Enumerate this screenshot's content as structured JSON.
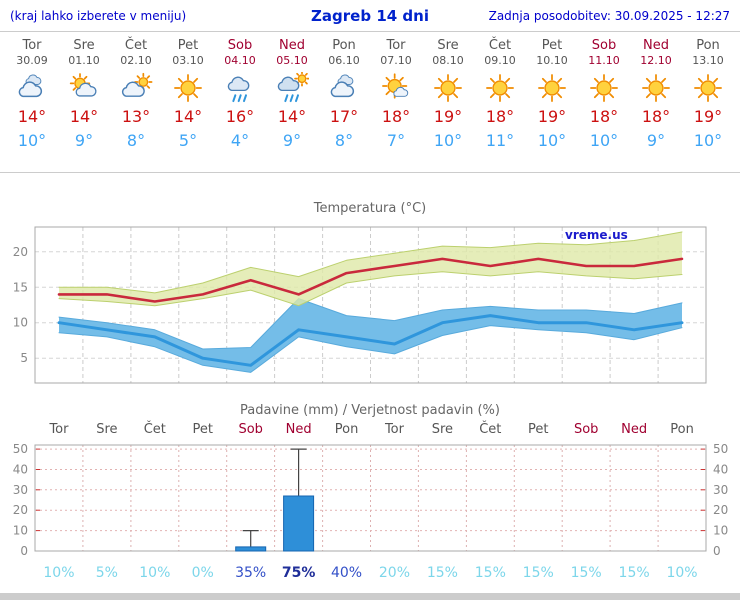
{
  "header": {
    "hint": "(kraj lahko izberete v meniju)",
    "title": "Zagreb 14 dni",
    "updated": "Zadnja posodobitev: 30.09.2025 - 12:27"
  },
  "colors": {
    "header_blue": "#0000cc",
    "weekend_red": "#a00030",
    "day_gray": "#555555",
    "high_red": "#cc1111",
    "low_blue": "#3fa5f5",
    "temp_line_red": "#c9293c",
    "temp_line_blue": "#2f96dc",
    "temp_band_green": "#dfe9a8",
    "temp_band_blue": "#74bde8",
    "bar_blue": "#2e8fd8",
    "bar_border": "#1565b0",
    "prob_light": "#7cd6ea",
    "prob_mid": "#3350c8",
    "prob_dark": "#1f2e99"
  },
  "days": [
    {
      "name": "Tor",
      "date": "30.09",
      "icon": "cloudy",
      "high": "14°",
      "low": "10°",
      "weekend": false
    },
    {
      "name": "Sre",
      "date": "01.10",
      "icon": "partly-cloudy",
      "high": "14°",
      "low": "9°",
      "weekend": false
    },
    {
      "name": "Čet",
      "date": "02.10",
      "icon": "mostly-cloudy",
      "high": "13°",
      "low": "8°",
      "weekend": false
    },
    {
      "name": "Pet",
      "date": "03.10",
      "icon": "sunny",
      "high": "14°",
      "low": "5°",
      "weekend": false
    },
    {
      "name": "Sob",
      "date": "04.10",
      "icon": "rain",
      "high": "16°",
      "low": "4°",
      "weekend": true
    },
    {
      "name": "Ned",
      "date": "05.10",
      "icon": "rain-sun",
      "high": "14°",
      "low": "9°",
      "weekend": true
    },
    {
      "name": "Pon",
      "date": "06.10",
      "icon": "cloudy",
      "high": "17°",
      "low": "8°",
      "weekend": false
    },
    {
      "name": "Tor",
      "date": "07.10",
      "icon": "mostly-sunny",
      "high": "18°",
      "low": "7°",
      "weekend": false
    },
    {
      "name": "Sre",
      "date": "08.10",
      "icon": "sunny",
      "high": "19°",
      "low": "10°",
      "weekend": false
    },
    {
      "name": "Čet",
      "date": "09.10",
      "icon": "sunny",
      "high": "18°",
      "low": "11°",
      "weekend": false
    },
    {
      "name": "Pet",
      "date": "10.10",
      "icon": "sunny",
      "high": "19°",
      "low": "10°",
      "weekend": false
    },
    {
      "name": "Sob",
      "date": "11.10",
      "icon": "sunny",
      "high": "18°",
      "low": "10°",
      "weekend": true
    },
    {
      "name": "Ned",
      "date": "12.10",
      "icon": "sunny",
      "high": "18°",
      "low": "9°",
      "weekend": true
    },
    {
      "name": "Pon",
      "date": "13.10",
      "icon": "sunny",
      "high": "19°",
      "low": "10°",
      "weekend": false
    }
  ],
  "charts": {
    "temperature": {
      "title": "Temperatura (°C)",
      "watermark": "vreme.us"
    },
    "precipitation": {
      "title": "Padavine (mm) / Verjetnost padavin (%)"
    }
  },
  "chart_data": [
    {
      "type": "line",
      "title": "Temperatura (°C)",
      "categories": [
        "Tor",
        "Sre",
        "Čet",
        "Pet",
        "Sob",
        "Ned",
        "Pon",
        "Tor",
        "Sre",
        "Čet",
        "Pet",
        "Sob",
        "Ned",
        "Pon"
      ],
      "ylim": [
        1.5,
        23.5
      ],
      "yticks": [
        5,
        10,
        15,
        20
      ],
      "grid": true,
      "legend": "none",
      "watermark": "vreme.us",
      "series": [
        {
          "name": "temp_max",
          "values": [
            14,
            14,
            13,
            14,
            16,
            14,
            17,
            18,
            19,
            18,
            19,
            18,
            18,
            19
          ]
        },
        {
          "name": "temp_min",
          "values": [
            10,
            9,
            8,
            5,
            4,
            9,
            8,
            7,
            10,
            11,
            10,
            10,
            9,
            10
          ]
        },
        {
          "name": "temp_max_band_upper",
          "values": [
            15,
            15,
            14.2,
            15.6,
            17.8,
            16.5,
            18.8,
            19.8,
            20.8,
            20.6,
            21.2,
            21,
            21.6,
            22.8
          ]
        },
        {
          "name": "temp_max_band_lower",
          "values": [
            13.4,
            13,
            12.4,
            13.4,
            14.6,
            12.4,
            15.6,
            16.6,
            17.2,
            16.6,
            17.2,
            16.6,
            16.2,
            16.8
          ]
        },
        {
          "name": "temp_min_band_upper",
          "values": [
            10.8,
            10,
            9,
            6.3,
            6.5,
            13.4,
            11,
            10.3,
            11.8,
            12.3,
            11.8,
            11.8,
            11.3,
            12.8
          ]
        },
        {
          "name": "temp_min_band_lower",
          "values": [
            8.6,
            8,
            6.6,
            4,
            3,
            8,
            6.6,
            5.6,
            8.2,
            9.6,
            9,
            8.6,
            7.6,
            9.3
          ]
        }
      ]
    },
    {
      "type": "bar",
      "title": "Padavine (mm) / Verjetnost padavin (%)",
      "categories": [
        "Tor",
        "Sre",
        "Čet",
        "Pet",
        "Sob",
        "Ned",
        "Pon",
        "Tor",
        "Sre",
        "Čet",
        "Pet",
        "Sob",
        "Ned",
        "Pon"
      ],
      "weekend": [
        false,
        false,
        false,
        false,
        true,
        true,
        false,
        false,
        false,
        false,
        false,
        true,
        true,
        false
      ],
      "values": [
        0,
        0,
        0,
        0,
        2,
        27,
        0,
        0,
        0,
        0,
        0,
        0,
        0,
        0
      ],
      "whisker_min": [
        0,
        0,
        0,
        0,
        0,
        5,
        0,
        0,
        0,
        0,
        0,
        0,
        0,
        0
      ],
      "whisker_max": [
        0,
        0,
        0,
        0,
        10,
        50,
        0,
        0,
        0,
        0,
        0,
        0,
        0,
        0
      ],
      "probability_pct": [
        10,
        5,
        10,
        0,
        35,
        75,
        40,
        20,
        15,
        15,
        15,
        15,
        15,
        10
      ],
      "ylim": [
        0,
        52
      ],
      "yticks": [
        0,
        10,
        20,
        30,
        40,
        50
      ]
    }
  ]
}
